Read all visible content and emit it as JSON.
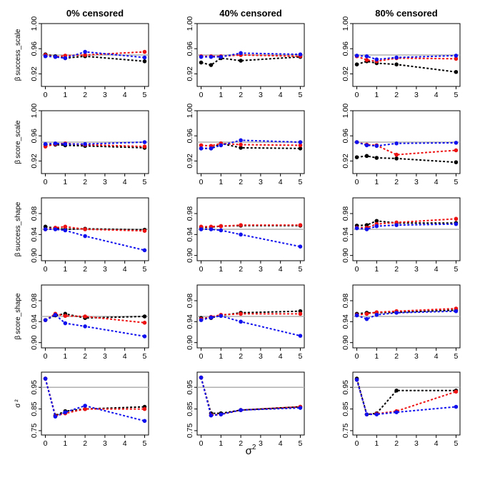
{
  "colors": {
    "black": "#000000",
    "red": "#ee1111",
    "blue": "#1010ee",
    "reference": "#b0b0b0",
    "axis": "#000000"
  },
  "x_axis_label": "σ²",
  "x_axis_base": "σ",
  "x_axis_sup": "2",
  "column_titles": [
    "0% censored",
    "40% censored",
    "80% censored"
  ],
  "row_labels": [
    {
      "prefix": "β",
      "text": "success_scale"
    },
    {
      "prefix": "β",
      "text": "score_scale"
    },
    {
      "prefix": "β",
      "text": "success_shape"
    },
    {
      "prefix": "β",
      "text": "score_shape"
    },
    {
      "prefix": "σ",
      "text": "²"
    }
  ],
  "chart_data": {
    "type": "line",
    "x": [
      0,
      0.5,
      1,
      2,
      5
    ],
    "x_ticks": [
      "0",
      "1",
      "2",
      "3",
      "4",
      "5"
    ],
    "series_names": [
      "black",
      "red",
      "blue"
    ],
    "reference_line": 0.95,
    "rows": [
      {
        "ylim": [
          0.9,
          1.0
        ],
        "yticks": [
          "0.92",
          "0.96",
          "1.00"
        ],
        "panels": [
          {
            "title": "0% censored",
            "series": [
              {
                "name": "black",
                "values": [
                  0.951,
                  0.948,
                  0.945,
                  0.948,
                  0.94
                ]
              },
              {
                "name": "red",
                "values": [
                  0.95,
                  0.947,
                  0.949,
                  0.95,
                  0.955
                ]
              },
              {
                "name": "blue",
                "values": [
                  0.948,
                  0.947,
                  0.945,
                  0.955,
                  0.946
                ]
              }
            ]
          },
          {
            "title": "40% censored",
            "series": [
              {
                "name": "black",
                "values": [
                  0.938,
                  0.934,
                  0.945,
                  0.941,
                  0.947
                ]
              },
              {
                "name": "red",
                "values": [
                  0.948,
                  0.948,
                  0.948,
                  0.95,
                  0.948
                ]
              },
              {
                "name": "blue",
                "values": [
                  0.947,
                  0.947,
                  0.947,
                  0.953,
                  0.951
                ]
              }
            ]
          },
          {
            "title": "80% censored",
            "series": [
              {
                "name": "black",
                "values": [
                  0.935,
                  0.94,
                  0.937,
                  0.935,
                  0.923
                ]
              },
              {
                "name": "red",
                "values": [
                  0.948,
                  0.942,
                  0.94,
                  0.945,
                  0.944
                ]
              },
              {
                "name": "blue",
                "values": [
                  0.949,
                  0.948,
                  0.943,
                  0.946,
                  0.949
                ]
              }
            ]
          }
        ]
      },
      {
        "ylim": [
          0.9,
          1.0
        ],
        "yticks": [
          "0.92",
          "0.96",
          "1.00"
        ],
        "panels": [
          {
            "title": "0% censored",
            "series": [
              {
                "name": "black",
                "values": [
                  0.946,
                  0.946,
                  0.945,
                  0.944,
                  0.941
                ]
              },
              {
                "name": "red",
                "values": [
                  0.943,
                  0.947,
                  0.948,
                  0.946,
                  0.943
                ]
              },
              {
                "name": "blue",
                "values": [
                  0.947,
                  0.948,
                  0.947,
                  0.947,
                  0.95
                ]
              }
            ]
          },
          {
            "title": "40% censored",
            "series": [
              {
                "name": "black",
                "values": [
                  0.94,
                  0.94,
                  0.948,
                  0.941,
                  0.94
                ]
              },
              {
                "name": "red",
                "values": [
                  0.945,
                  0.944,
                  0.948,
                  0.946,
                  0.945
                ]
              },
              {
                "name": "blue",
                "values": [
                  0.94,
                  0.94,
                  0.945,
                  0.953,
                  0.95
                ]
              }
            ]
          },
          {
            "title": "80% censored",
            "series": [
              {
                "name": "black",
                "values": [
                  0.926,
                  0.928,
                  0.925,
                  0.924,
                  0.918
                ]
              },
              {
                "name": "red",
                "values": [
                  0.95,
                  0.946,
                  0.945,
                  0.93,
                  0.937
                ]
              },
              {
                "name": "blue",
                "values": [
                  0.95,
                  0.945,
                  0.944,
                  0.948,
                  0.949
                ]
              }
            ]
          }
        ]
      },
      {
        "ylim": [
          0.89,
          1.01
        ],
        "yticks": [
          "0.90",
          "0.94",
          "0.98"
        ],
        "panels": [
          {
            "title": "0% censored",
            "series": [
              {
                "name": "black",
                "values": [
                  0.955,
                  0.952,
                  0.95,
                  0.951,
                  0.949
                ]
              },
              {
                "name": "red",
                "values": [
                  0.95,
                  0.953,
                  0.955,
                  0.95,
                  0.947
                ]
              },
              {
                "name": "blue",
                "values": [
                  0.95,
                  0.95,
                  0.948,
                  0.937,
                  0.91
                ]
              }
            ]
          },
          {
            "title": "40% censored",
            "series": [
              {
                "name": "black",
                "values": [
                  0.953,
                  0.954,
                  0.956,
                  0.957,
                  0.957
                ]
              },
              {
                "name": "red",
                "values": [
                  0.955,
                  0.955,
                  0.956,
                  0.958,
                  0.958
                ]
              },
              {
                "name": "blue",
                "values": [
                  0.95,
                  0.95,
                  0.948,
                  0.94,
                  0.917
                ]
              }
            ]
          },
          {
            "title": "80% censored",
            "series": [
              {
                "name": "black",
                "values": [
                  0.957,
                  0.958,
                  0.966,
                  0.962,
                  0.962
                ]
              },
              {
                "name": "red",
                "values": [
                  0.953,
                  0.953,
                  0.96,
                  0.963,
                  0.97
                ]
              },
              {
                "name": "blue",
                "values": [
                  0.952,
                  0.95,
                  0.956,
                  0.958,
                  0.96
                ]
              }
            ]
          }
        ]
      },
      {
        "ylim": [
          0.89,
          1.01
        ],
        "yticks": [
          "0.90",
          "0.94",
          "0.98"
        ],
        "panels": [
          {
            "title": "0% censored",
            "series": [
              {
                "name": "black",
                "values": [
                  0.943,
                  0.952,
                  0.955,
                  0.947,
                  0.95
                ]
              },
              {
                "name": "red",
                "values": [
                  0.943,
                  0.955,
                  0.951,
                  0.95,
                  0.938
                ]
              },
              {
                "name": "blue",
                "values": [
                  0.943,
                  0.953,
                  0.937,
                  0.931,
                  0.912
                ]
              }
            ]
          },
          {
            "title": "40% censored",
            "series": [
              {
                "name": "black",
                "values": [
                  0.947,
                  0.947,
                  0.952,
                  0.957,
                  0.96
                ]
              },
              {
                "name": "red",
                "values": [
                  0.945,
                  0.949,
                  0.953,
                  0.955,
                  0.955
                ]
              },
              {
                "name": "blue",
                "values": [
                  0.943,
                  0.948,
                  0.951,
                  0.94,
                  0.913
                ]
              }
            ]
          },
          {
            "title": "80% censored",
            "series": [
              {
                "name": "black",
                "values": [
                  0.955,
                  0.957,
                  0.957,
                  0.958,
                  0.962
                ]
              },
              {
                "name": "red",
                "values": [
                  0.953,
                  0.955,
                  0.958,
                  0.96,
                  0.965
                ]
              },
              {
                "name": "blue",
                "values": [
                  0.952,
                  0.945,
                  0.953,
                  0.957,
                  0.96
                ]
              }
            ]
          }
        ]
      },
      {
        "ylim": [
          0.73,
          1.02
        ],
        "yticks": [
          "0.75",
          "0.85",
          "0.95"
        ],
        "panels": [
          {
            "title": "0% censored",
            "series": [
              {
                "name": "black",
                "values": [
                  0.99,
                  0.82,
                  0.84,
                  0.85,
                  0.86
                ]
              },
              {
                "name": "red",
                "values": [
                  0.99,
                  0.818,
                  0.83,
                  0.85,
                  0.85
                ]
              },
              {
                "name": "blue",
                "values": [
                  0.99,
                  0.815,
                  0.835,
                  0.865,
                  0.795
                ]
              }
            ]
          },
          {
            "title": "40% censored",
            "series": [
              {
                "name": "black",
                "values": [
                  0.995,
                  0.83,
                  0.83,
                  0.845,
                  0.86
                ]
              },
              {
                "name": "red",
                "values": [
                  0.995,
                  0.822,
                  0.825,
                  0.845,
                  0.86
                ]
              },
              {
                "name": "blue",
                "values": [
                  0.995,
                  0.82,
                  0.825,
                  0.845,
                  0.855
                ]
              }
            ]
          },
          {
            "title": "80% censored",
            "series": [
              {
                "name": "black",
                "values": [
                  0.99,
                  0.825,
                  0.83,
                  0.935,
                  0.935
                ]
              },
              {
                "name": "red",
                "values": [
                  0.985,
                  0.825,
                  0.828,
                  0.84,
                  0.93
                ]
              },
              {
                "name": "blue",
                "values": [
                  0.985,
                  0.825,
                  0.825,
                  0.835,
                  0.86
                ]
              }
            ]
          }
        ]
      }
    ]
  }
}
